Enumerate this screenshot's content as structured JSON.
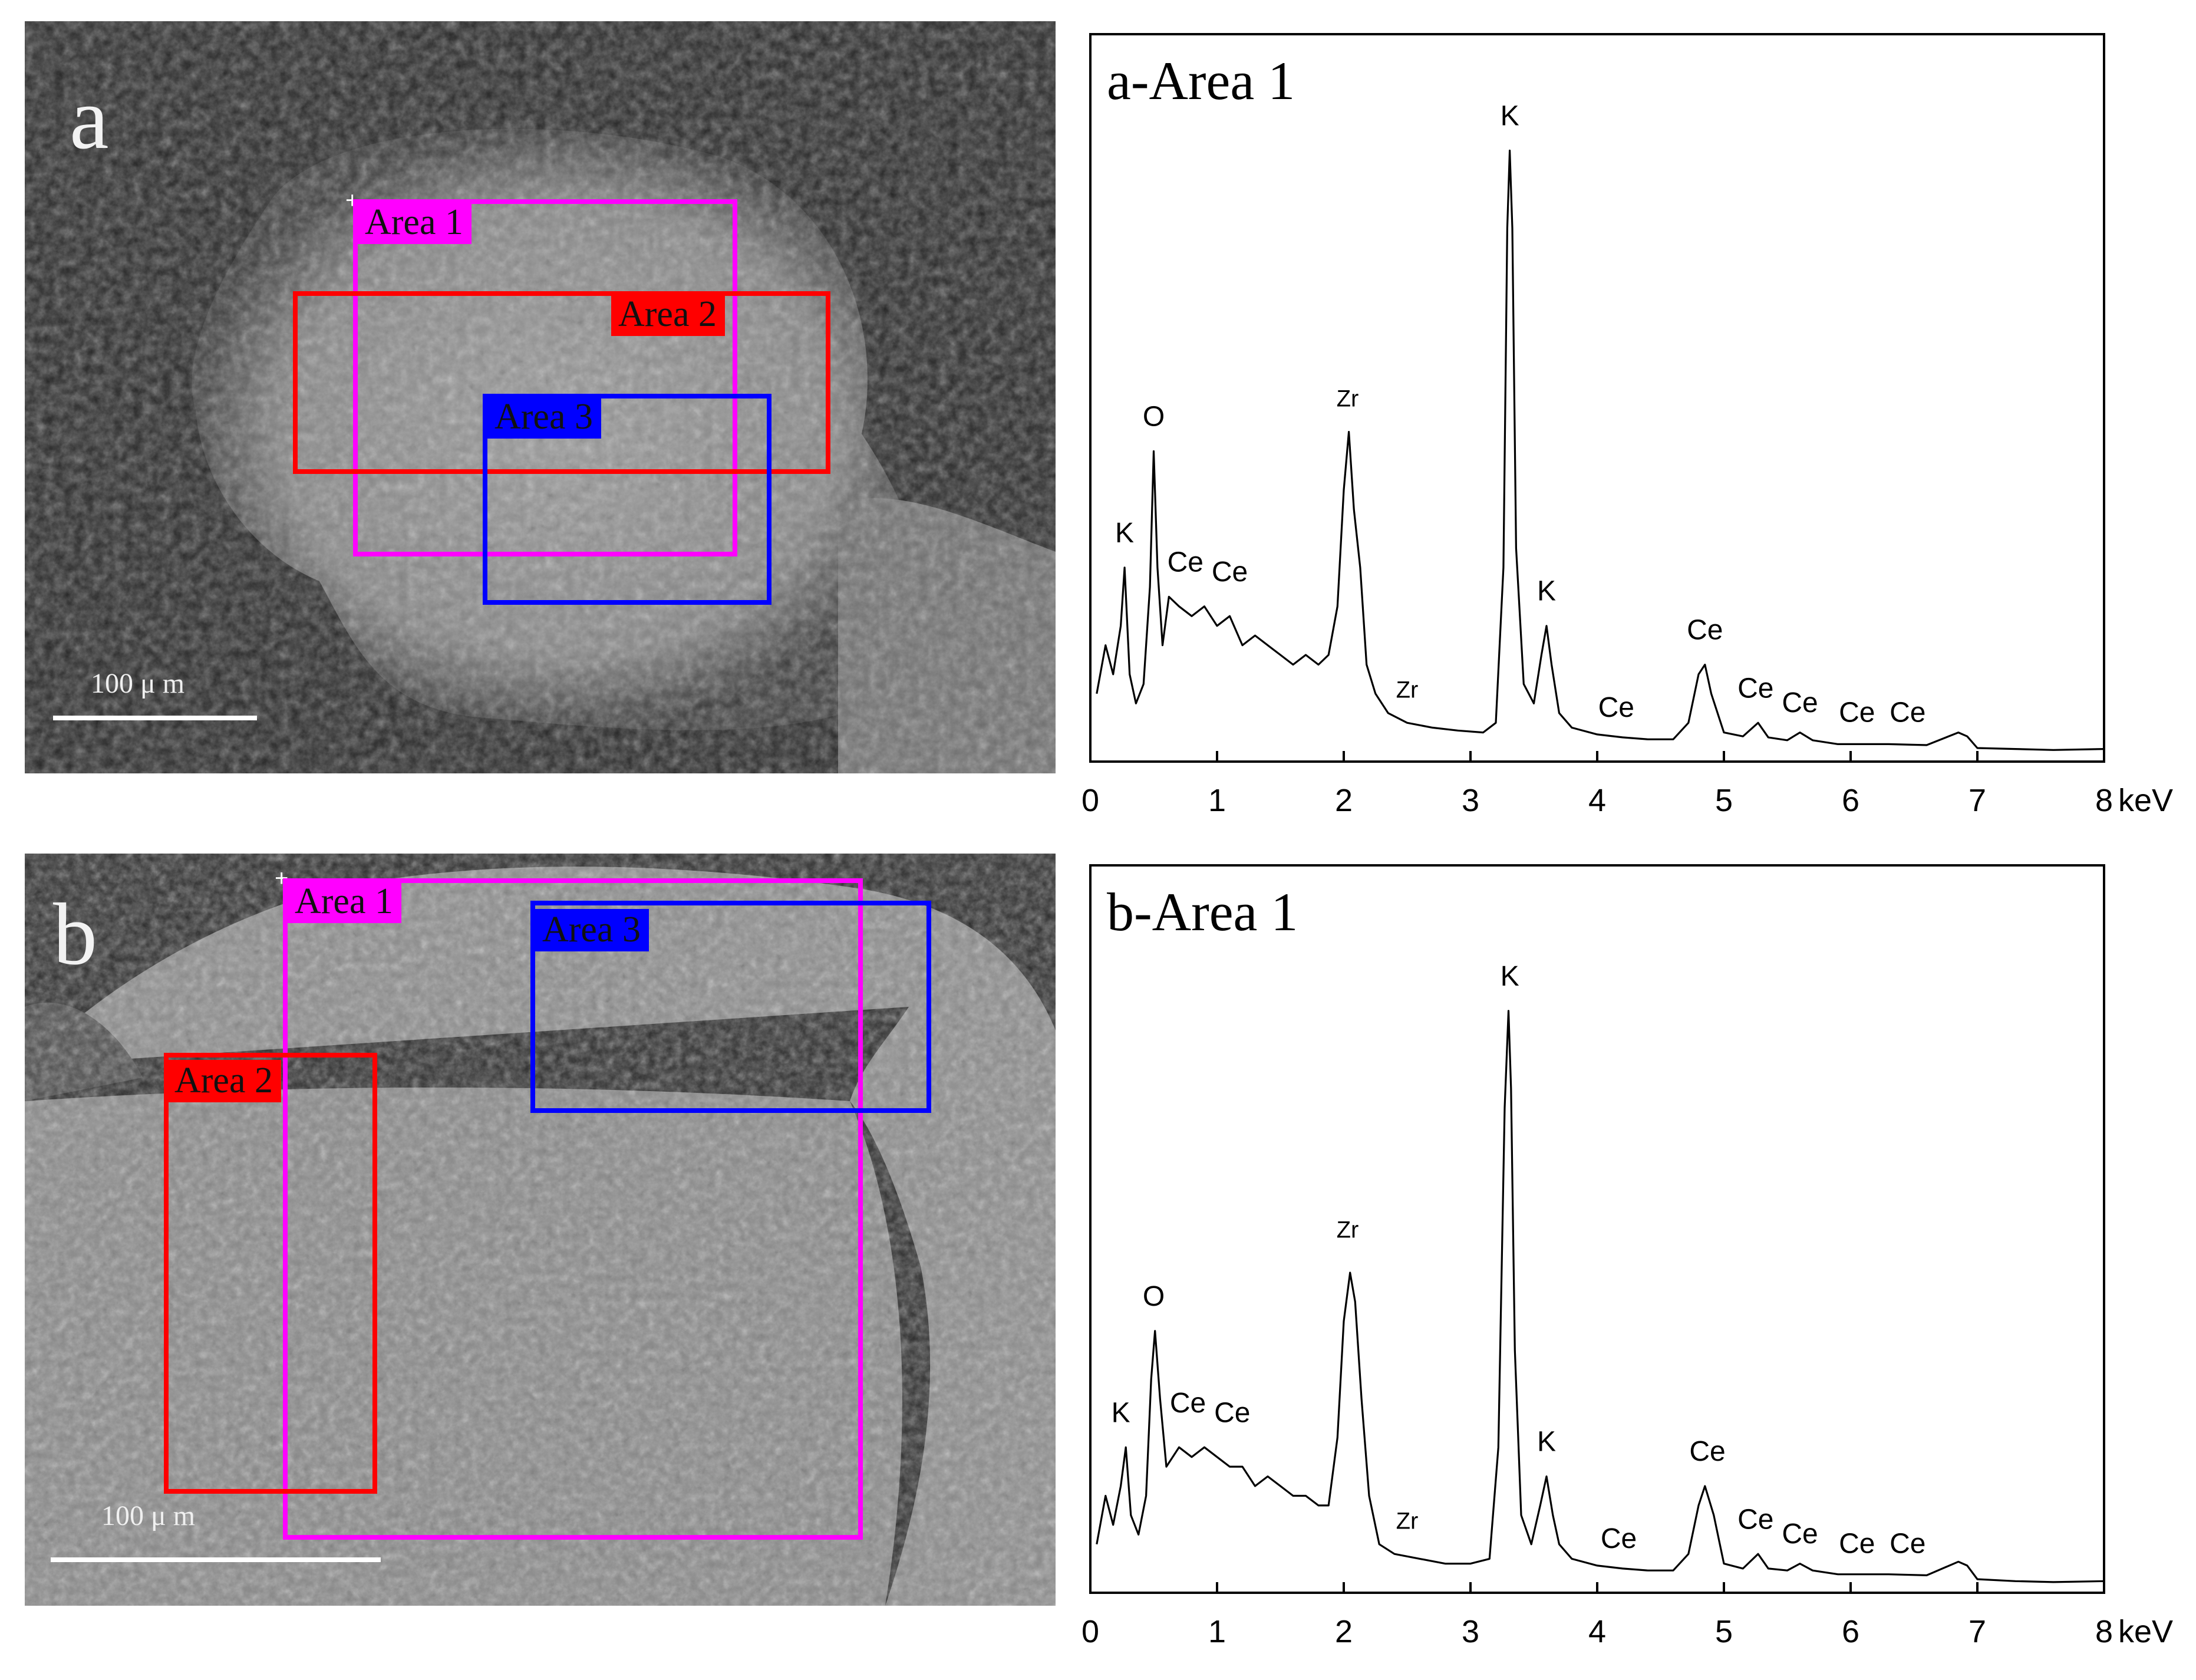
{
  "panels": [
    {
      "letter": "a",
      "scale_bar": "100 μ m",
      "areas": [
        {
          "label": "Area 1",
          "color": "#ff00ff"
        },
        {
          "label": "Area 2",
          "color": "#ff0000"
        },
        {
          "label": "Area 3",
          "color": "#0000ff"
        }
      ]
    },
    {
      "letter": "b",
      "scale_bar": "100 μ m",
      "areas": [
        {
          "label": "Area 1",
          "color": "#ff00ff"
        },
        {
          "label": "Area 2",
          "color": "#ff0000"
        },
        {
          "label": "Area 3",
          "color": "#0000ff"
        }
      ]
    }
  ],
  "chart_data": [
    {
      "type": "line",
      "title": "a-Area 1",
      "xlabel": "keV",
      "ylabel": "",
      "xlim": [
        0,
        8
      ],
      "x_ticks": [
        0,
        1,
        2,
        3,
        4,
        5,
        6,
        7,
        8
      ],
      "series": [
        {
          "x": [
            0.05,
            0.12,
            0.18,
            0.24,
            0.27,
            0.31,
            0.36,
            0.42,
            0.47,
            0.5,
            0.53,
            0.57,
            0.62,
            0.7,
            0.8,
            0.9,
            1.0,
            1.1,
            1.2,
            1.3,
            1.4,
            1.5,
            1.6,
            1.7,
            1.8,
            1.88,
            1.95,
            2.0,
            2.04,
            2.08,
            2.13,
            2.18,
            2.25,
            2.35,
            2.5,
            2.7,
            2.9,
            3.1,
            3.2,
            3.26,
            3.29,
            3.31,
            3.33,
            3.36,
            3.42,
            3.5,
            3.56,
            3.6,
            3.64,
            3.7,
            3.8,
            4.0,
            4.2,
            4.4,
            4.6,
            4.72,
            4.8,
            4.85,
            4.9,
            5.0,
            5.15,
            5.27,
            5.35,
            5.5,
            5.6,
            5.7,
            5.9,
            6.1,
            6.3,
            6.6,
            6.85,
            6.92,
            7.0,
            7.3,
            7.6,
            8.0
          ],
          "y": [
            7,
            12,
            9,
            14,
            20,
            9,
            6,
            8,
            18,
            32,
            20,
            12,
            17,
            16,
            15,
            16,
            14,
            15,
            12,
            13,
            12,
            11,
            10,
            11,
            10,
            11,
            16,
            28,
            34,
            26,
            20,
            10,
            7,
            5,
            4,
            3.5,
            3.2,
            3,
            4,
            20,
            55,
            63,
            55,
            22,
            8,
            6,
            11,
            14,
            10,
            5,
            3.5,
            2.8,
            2.5,
            2.3,
            2.3,
            4,
            9,
            10,
            7,
            3,
            2.6,
            4,
            2.5,
            2.2,
            3,
            2.2,
            1.8,
            1.8,
            1.8,
            1.7,
            3,
            2.6,
            1.4,
            1.3,
            1.2,
            1.3
          ]
        }
      ],
      "peak_labels": [
        {
          "text": "K",
          "x": 0.27,
          "y": 22
        },
        {
          "text": "O",
          "x": 0.5,
          "y": 34
        },
        {
          "text": "Ce",
          "x": 0.75,
          "y": 19
        },
        {
          "text": "Ce",
          "x": 1.1,
          "y": 18
        },
        {
          "text": "Zr",
          "x": 2.03,
          "y": 36
        },
        {
          "text": "Zr",
          "x": 2.5,
          "y": 6
        },
        {
          "text": "K",
          "x": 3.31,
          "y": 65
        },
        {
          "text": "K",
          "x": 3.6,
          "y": 16
        },
        {
          "text": "Ce",
          "x": 4.15,
          "y": 4
        },
        {
          "text": "Ce",
          "x": 4.85,
          "y": 12
        },
        {
          "text": "Ce",
          "x": 5.25,
          "y": 6
        },
        {
          "text": "Ce",
          "x": 5.6,
          "y": 4.5
        },
        {
          "text": "Ce",
          "x": 6.05,
          "y": 3.5
        },
        {
          "text": "Ce",
          "x": 6.45,
          "y": 3.5
        }
      ]
    },
    {
      "type": "line",
      "title": "b-Area 1",
      "xlabel": "keV",
      "ylabel": "",
      "xlim": [
        0,
        8
      ],
      "x_ticks": [
        0,
        1,
        2,
        3,
        4,
        5,
        6,
        7,
        8
      ],
      "series": [
        {
          "x": [
            0.05,
            0.12,
            0.18,
            0.24,
            0.28,
            0.32,
            0.38,
            0.44,
            0.48,
            0.51,
            0.55,
            0.6,
            0.7,
            0.8,
            0.9,
            1.0,
            1.1,
            1.2,
            1.3,
            1.4,
            1.5,
            1.6,
            1.7,
            1.8,
            1.88,
            1.95,
            2.0,
            2.05,
            2.09,
            2.14,
            2.2,
            2.28,
            2.4,
            2.6,
            2.8,
            3.0,
            3.15,
            3.22,
            3.27,
            3.3,
            3.32,
            3.35,
            3.4,
            3.48,
            3.55,
            3.6,
            3.65,
            3.7,
            3.8,
            4.0,
            4.2,
            4.4,
            4.6,
            4.72,
            4.8,
            4.85,
            4.92,
            5.0,
            5.15,
            5.27,
            5.35,
            5.5,
            5.6,
            5.7,
            5.9,
            6.1,
            6.3,
            6.6,
            6.85,
            6.92,
            7.0,
            7.3,
            7.6,
            8.0
          ],
          "y": [
            5,
            10,
            7,
            11,
            15,
            8,
            6,
            10,
            22,
            27,
            20,
            13,
            15,
            14,
            15,
            14,
            13,
            13,
            11,
            12,
            11,
            10,
            10,
            9,
            9,
            16,
            28,
            33,
            30,
            20,
            10,
            5,
            4,
            3.5,
            3,
            3,
            3.5,
            15,
            50,
            60,
            52,
            25,
            8,
            5,
            9,
            12,
            8,
            5,
            3.5,
            2.8,
            2.5,
            2.3,
            2.3,
            4,
            9,
            11,
            8,
            3,
            2.5,
            4,
            2.5,
            2.3,
            3,
            2.3,
            1.9,
            1.9,
            1.9,
            1.8,
            3.2,
            2.8,
            1.4,
            1.2,
            1.1,
            1.2
          ]
        }
      ],
      "peak_labels": [
        {
          "text": "K",
          "x": 0.24,
          "y": 17
        },
        {
          "text": "O",
          "x": 0.5,
          "y": 29
        },
        {
          "text": "Ce",
          "x": 0.77,
          "y": 18
        },
        {
          "text": "Ce",
          "x": 1.12,
          "y": 17
        },
        {
          "text": "Zr",
          "x": 2.03,
          "y": 36
        },
        {
          "text": "Zr",
          "x": 2.5,
          "y": 6
        },
        {
          "text": "K",
          "x": 3.31,
          "y": 62
        },
        {
          "text": "K",
          "x": 3.6,
          "y": 14
        },
        {
          "text": "Ce",
          "x": 4.17,
          "y": 4
        },
        {
          "text": "Ce",
          "x": 4.87,
          "y": 13
        },
        {
          "text": "Ce",
          "x": 5.25,
          "y": 6
        },
        {
          "text": "Ce",
          "x": 5.6,
          "y": 4.5
        },
        {
          "text": "Ce",
          "x": 6.05,
          "y": 3.5
        },
        {
          "text": "Ce",
          "x": 6.45,
          "y": 3.5
        }
      ]
    }
  ]
}
